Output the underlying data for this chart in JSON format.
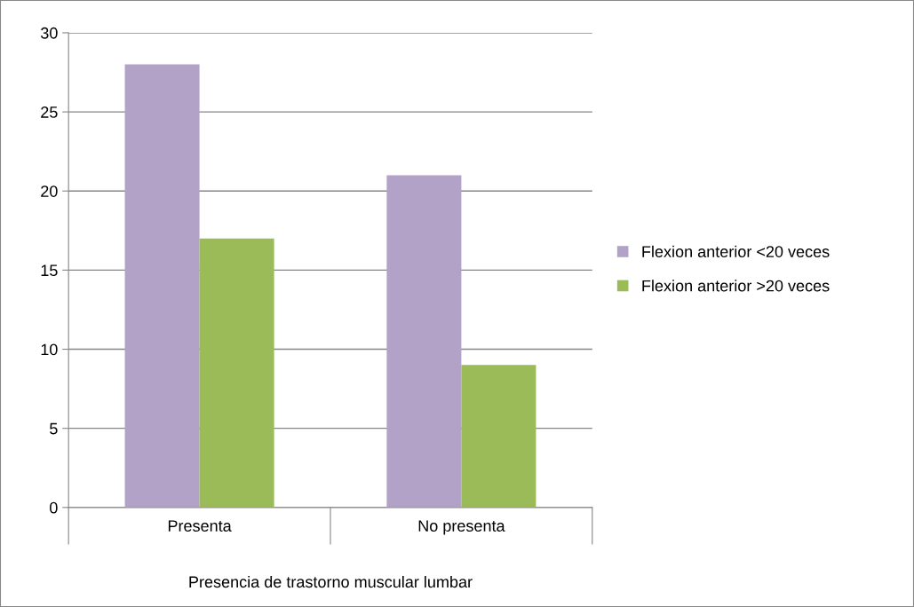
{
  "chart_data": {
    "type": "bar",
    "xlabel": "Presencia de trastorno muscular lumbar",
    "categories": [
      "Presenta",
      "No presenta"
    ],
    "series": [
      {
        "name": "Flexion anterior <20 veces",
        "color": "#b3a2c7",
        "values": [
          28,
          21
        ]
      },
      {
        "name": "Flexion anterior >20 veces",
        "color": "#9bbb59",
        "values": [
          17,
          9
        ]
      }
    ],
    "ylim": [
      0,
      30
    ],
    "yticks": [
      0,
      5,
      10,
      15,
      20,
      25,
      30
    ],
    "grid": "y",
    "legend": "right"
  }
}
